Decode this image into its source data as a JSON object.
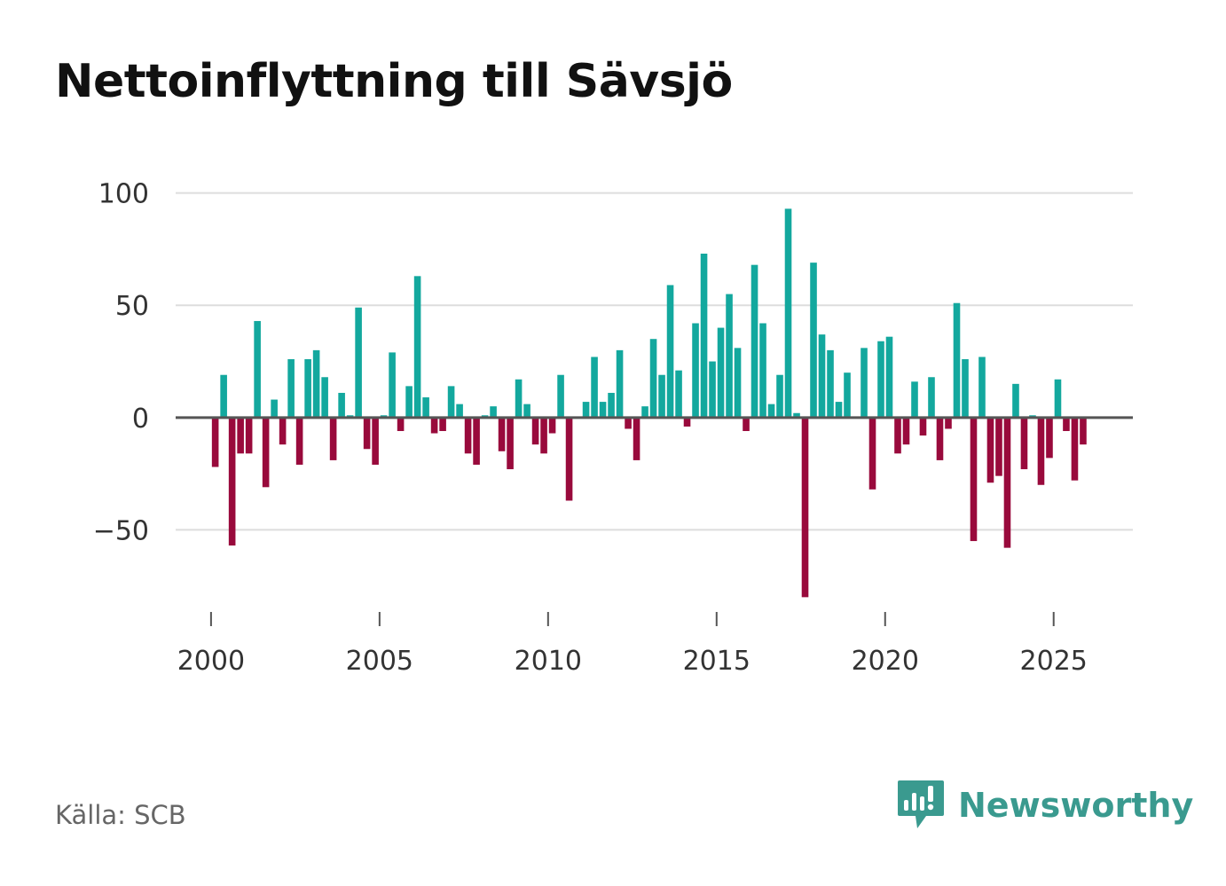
{
  "chart_data": {
    "type": "bar",
    "title": "Nettoinflyttning till Sävsjö",
    "xlabel": "",
    "ylabel": "",
    "ylim": [
      -85,
      105
    ],
    "xlim": [
      1998.95,
      2027.35
    ],
    "x_ticks": [
      2000,
      2005,
      2010,
      2015,
      2020,
      2025
    ],
    "y_ticks": [
      -50,
      0,
      50,
      100
    ],
    "y_tick_labels": [
      "−50",
      "0",
      "50",
      "100"
    ],
    "grid": true,
    "bar_interval": "quarter",
    "first_period": 2000.125,
    "positive_color": "#13a89e",
    "negative_color": "#990a3c",
    "values": [
      -22,
      19,
      -57,
      -16,
      -16,
      43,
      -31,
      8,
      -12,
      26,
      -21,
      26,
      30,
      18,
      -19,
      11,
      1,
      49,
      -14,
      -21,
      1,
      29,
      -6,
      14,
      63,
      9,
      -7,
      -6,
      14,
      6,
      -16,
      -21,
      1,
      5,
      -15,
      -23,
      17,
      6,
      -12,
      -16,
      -7,
      19,
      -37,
      0,
      7,
      27,
      7,
      11,
      30,
      -5,
      -19,
      5,
      35,
      19,
      59,
      21,
      -4,
      42,
      73,
      25,
      40,
      55,
      31,
      -6,
      68,
      42,
      6,
      19,
      93,
      2,
      -80,
      69,
      37,
      30,
      7,
      20,
      0,
      31,
      -32,
      34,
      36,
      -16,
      -12,
      16,
      -8,
      18,
      -19,
      -5,
      51,
      26,
      -55,
      27,
      -29,
      -26,
      -58,
      15,
      -23,
      1,
      -30,
      -18,
      17,
      -6,
      -28,
      -12
    ]
  },
  "source": "Källa: SCB",
  "brand": {
    "name": "Newsworthy",
    "logo_color": "#3a9a8f"
  }
}
